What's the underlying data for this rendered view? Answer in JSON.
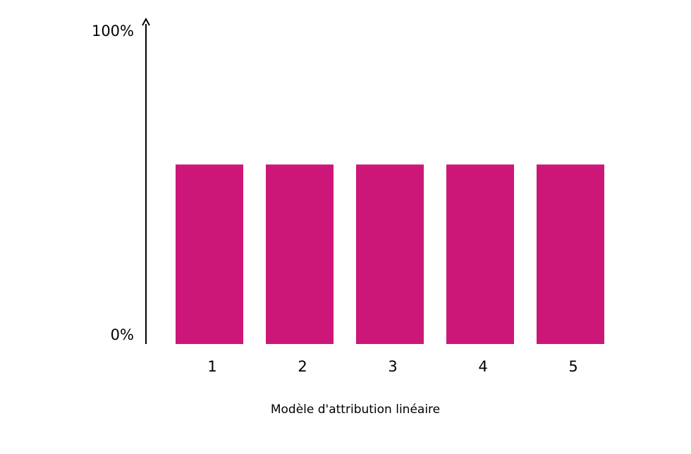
{
  "chart_data": {
    "type": "bar",
    "categories": [
      "1",
      "2",
      "3",
      "4",
      "5"
    ],
    "values": [
      55,
      55,
      55,
      55,
      55
    ],
    "title": "",
    "xlabel": "Modèle d'attribution linéaire",
    "ylabel": "",
    "ylim": [
      0,
      100
    ],
    "y_ticks": [
      "0%",
      "100%"
    ],
    "grid": false,
    "bar_color": "#cd1778",
    "axis_color": "#000000"
  }
}
